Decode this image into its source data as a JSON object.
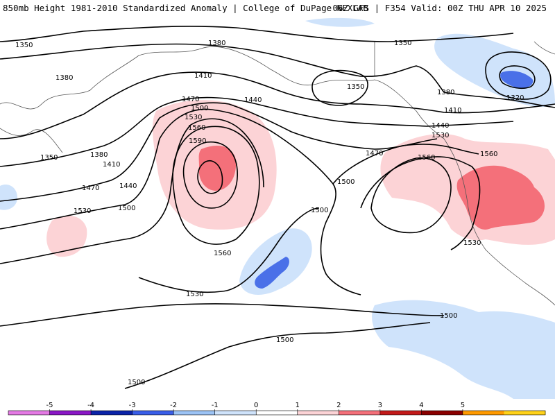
{
  "header": {
    "left": "850mb Height 1981-2010 Standardized Anomaly | College of DuPage NEXLAB",
    "right": "06Z GFS | F354 Valid: 00Z THU APR 10 2025"
  },
  "contour_labels": [
    "1350",
    "1380",
    "1410",
    "1440",
    "1470",
    "1500",
    "1530",
    "1560",
    "1590",
    "1320"
  ],
  "colorbar": {
    "ticks": [
      "-5",
      "-4",
      "-3",
      "-2",
      "-1",
      "0",
      "1",
      "2",
      "3",
      "4",
      "5"
    ],
    "colors": [
      "#e47ae4",
      "#8a17c6",
      "#0b23a8",
      "#3a5ee8",
      "#9cc3f5",
      "#cfe3fb",
      "#ffffff",
      "#fcd3d6",
      "#f4707a",
      "#c21a1a",
      "#8a0000",
      "#ff9a00",
      "#ffd21a"
    ]
  },
  "colors": {
    "positive_light": "#fcd3d6",
    "positive_medium": "#f4707a",
    "negative_light": "#cfe3fb",
    "negative_medium": "#4a70e8",
    "contour": "#000000",
    "coastline": "#555555"
  }
}
